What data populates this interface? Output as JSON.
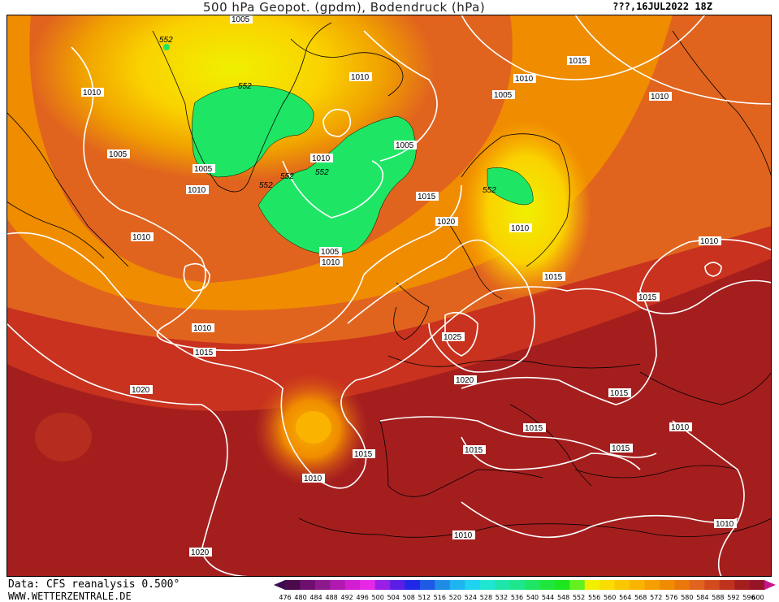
{
  "header": {
    "title": "500 hPa Geopot. (gpdm), Bodendruck (hPa)",
    "datetime": "???,16JUL2022 18Z"
  },
  "footer": {
    "source": "Data: CFS reanalysis 0.500°",
    "site": "WWW.WETTERZENTRALE.DE"
  },
  "colorscale": {
    "labels": [
      "476",
      "480",
      "484",
      "488",
      "492",
      "496",
      "500",
      "504",
      "508",
      "512",
      "516",
      "520",
      "524",
      "528",
      "532",
      "536",
      "540",
      "544",
      "548",
      "552",
      "556",
      "560",
      "564",
      "568",
      "572",
      "576",
      "580",
      "584",
      "588",
      "592",
      "596",
      "600"
    ],
    "colors": [
      "#4b0a4b",
      "#6e0f6e",
      "#8c1a8c",
      "#b01ab0",
      "#d21ed2",
      "#e628e6",
      "#9b1ee6",
      "#5a1ee6",
      "#1e28e6",
      "#1e5ae6",
      "#1e8ce6",
      "#1eb4f0",
      "#1ed2f0",
      "#1ee6d2",
      "#1ee6aa",
      "#1ee68c",
      "#1ee664",
      "#1ee63c",
      "#1ee61e",
      "#64f01e",
      "#f0f000",
      "#fadc00",
      "#fac800",
      "#fab400",
      "#f5a000",
      "#f08c00",
      "#eb780a",
      "#e1641e",
      "#d24b1e",
      "#be321e",
      "#a51e1e",
      "#961428"
    ]
  },
  "isobars": {
    "labels": [
      {
        "text": "1005"
      },
      {
        "text": "552"
      },
      {
        "text": "1010"
      },
      {
        "text": "552"
      },
      {
        "text": "1010"
      },
      {
        "text": "1015"
      },
      {
        "text": "1010"
      },
      {
        "text": "1005"
      },
      {
        "text": "1010"
      },
      {
        "text": "1005"
      },
      {
        "text": "1005"
      },
      {
        "text": "1010"
      },
      {
        "text": "552"
      },
      {
        "text": "552"
      },
      {
        "text": "552"
      },
      {
        "text": "1005"
      },
      {
        "text": "1010"
      },
      {
        "text": "1015"
      },
      {
        "text": "552"
      },
      {
        "text": "1020"
      },
      {
        "text": "1010"
      },
      {
        "text": "1010"
      },
      {
        "text": "1010"
      },
      {
        "text": "1010"
      },
      {
        "text": "1015"
      },
      {
        "text": "1015"
      },
      {
        "text": "1005"
      },
      {
        "text": "1010"
      },
      {
        "text": "1010"
      },
      {
        "text": "1015"
      },
      {
        "text": "1025"
      },
      {
        "text": "1020"
      },
      {
        "text": "1020"
      },
      {
        "text": "1015"
      },
      {
        "text": "1015"
      },
      {
        "text": "1010"
      },
      {
        "text": "1015"
      },
      {
        "text": "1015"
      },
      {
        "text": "1015"
      },
      {
        "text": "1010"
      },
      {
        "text": "1020"
      },
      {
        "text": "1010"
      }
    ]
  }
}
